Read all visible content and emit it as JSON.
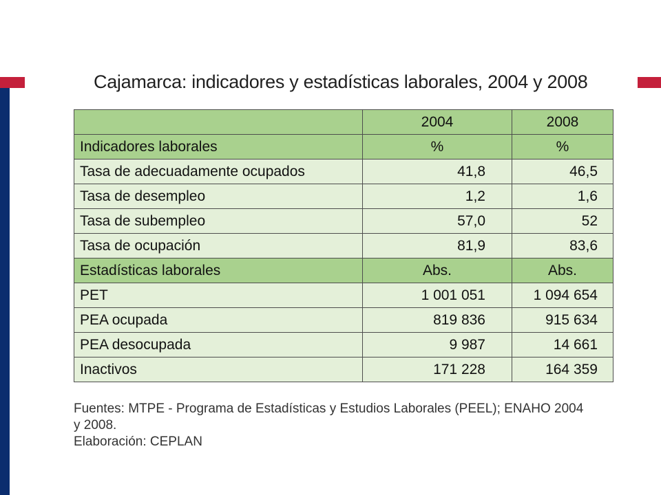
{
  "colors": {
    "navy_bar": "#0b2d6e",
    "red_accent": "#c4203b",
    "header_green": "#a9d18e",
    "row_green": "#e4f0d9"
  },
  "title": "Cajamarca: indicadores y estadísticas laborales, 2004 y 2008",
  "table": {
    "header": {
      "label": "",
      "col1": "2004",
      "col2": "2008"
    },
    "sections": [
      {
        "title": "Indicadores laborales",
        "unit1": "%",
        "unit2": "%",
        "rows": [
          {
            "label": "Tasa de adecuadamente ocupados",
            "v2004": "41,8",
            "v2008": "46,5"
          },
          {
            "label": "Tasa de desempleo",
            "v2004": "1,2",
            "v2008": "1,6"
          },
          {
            "label": "Tasa de subempleo",
            "v2004": "57,0",
            "v2008": "52"
          },
          {
            "label": "Tasa de ocupación",
            "v2004": "81,9",
            "v2008": "83,6"
          }
        ]
      },
      {
        "title": "Estadísticas laborales",
        "unit1": "Abs.",
        "unit2": "Abs.",
        "rows": [
          {
            "label": "PET",
            "v2004": "1 001 051",
            "v2008": "1 094 654"
          },
          {
            "label": "PEA ocupada",
            "v2004": "819 836",
            "v2008": "915 634"
          },
          {
            "label": "PEA desocupada",
            "v2004": "9 987",
            "v2008": "14 661"
          },
          {
            "label": "Inactivos",
            "v2004": "171 228",
            "v2008": "164 359"
          }
        ]
      }
    ]
  },
  "notes": {
    "source_line1": "Fuentes: MTPE - Programa de Estadísticas y Estudios Laborales (PEEL); ENAHO 2004",
    "source_line2": "y 2008.",
    "elaboration": "Elaboración: CEPLAN"
  }
}
